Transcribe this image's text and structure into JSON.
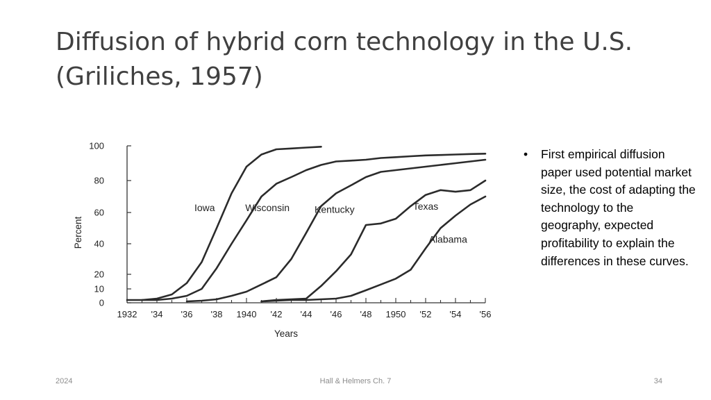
{
  "slide": {
    "title_line1": "Diffusion of hybrid corn technology in the U.S.",
    "title_line2": "(Griliches, 1957)",
    "bullet_marker": "•",
    "bullet_text": "First empirical diffusion paper used potential market size, the cost of adapting the technology to the geography, expected profitability to explain the differences in these curves.",
    "footer_date": "2024",
    "footer_source": "Hall & Helmers Ch. 7",
    "page_number": "34"
  },
  "colors": {
    "curve": "#2b2b2b",
    "axis": "#333333",
    "text": "#404040"
  },
  "chart_data": {
    "type": "line",
    "title": "",
    "xlabel": "Years",
    "ylabel": "Percent",
    "xlim": [
      1932,
      1956
    ],
    "ylim": [
      0,
      100
    ],
    "x_ticks": [
      1932,
      1934,
      1936,
      1938,
      1940,
      1942,
      1944,
      1946,
      1948,
      1950,
      1952,
      1954,
      1956
    ],
    "x_tick_labels": [
      "1932",
      "'34",
      "'36",
      "'38",
      "1940",
      "'42",
      "'44",
      "'46",
      "'48",
      "1950",
      "'52",
      "'54",
      "'56"
    ],
    "y_ticks": [
      0,
      10,
      20,
      40,
      60,
      80,
      100
    ],
    "y_tick_labels": [
      "0",
      "10",
      "20",
      "40",
      "60",
      "80",
      "100"
    ],
    "grid": false,
    "legend": "none",
    "series": [
      {
        "name": "Iowa",
        "label_at": [
          1937.2,
          63
        ],
        "x": [
          1932,
          1933,
          1934,
          1935,
          1936,
          1937,
          1938,
          1939,
          1940,
          1941,
          1942,
          1943,
          1944,
          1945
        ],
        "y": [
          2,
          2,
          3,
          6,
          14,
          28,
          50,
          72,
          88,
          95,
          98,
          98.5,
          99,
          99.5
        ]
      },
      {
        "name": "Wisconsin",
        "label_at": [
          1941.4,
          63
        ],
        "x": [
          1933,
          1934,
          1935,
          1936,
          1937,
          1938,
          1939,
          1940,
          1941,
          1942,
          1943,
          1944,
          1945,
          1946,
          1947,
          1948,
          1949,
          1950,
          1951,
          1952,
          1953,
          1954,
          1955,
          1956
        ],
        "y": [
          2,
          2,
          3,
          5,
          10,
          24,
          40,
          55,
          70,
          78,
          82,
          86,
          89,
          91,
          91.5,
          92,
          93,
          93.5,
          94,
          94.5,
          94.7,
          95,
          95.3,
          95.5
        ]
      },
      {
        "name": "Kentucky",
        "label_at": [
          1945.9,
          62
        ],
        "x": [
          1936,
          1937,
          1938,
          1939,
          1940,
          1941,
          1942,
          1943,
          1944,
          1945,
          1946,
          1947,
          1948,
          1949,
          1950,
          1951,
          1952,
          1953,
          1954,
          1955,
          1956
        ],
        "y": [
          1,
          1.5,
          2.5,
          5,
          8,
          13,
          18,
          30,
          47,
          64,
          72,
          77,
          82,
          85,
          86,
          87,
          88,
          89,
          90,
          91,
          92
        ]
      },
      {
        "name": "Texas",
        "label_at": [
          1952,
          64
        ],
        "x": [
          1941,
          1942,
          1943,
          1944,
          1945,
          1946,
          1947,
          1948,
          1949,
          1950,
          1951,
          1952,
          1953,
          1954,
          1955,
          1956
        ],
        "y": [
          1,
          2,
          2.5,
          3,
          12,
          22,
          33,
          52,
          53,
          56,
          64,
          71,
          74,
          73,
          74,
          80
        ]
      },
      {
        "name": "Alabama",
        "label_at": [
          1953.5,
          43
        ],
        "x": [
          1941,
          1942,
          1943,
          1944,
          1945,
          1946,
          1947,
          1948,
          1949,
          1950,
          1951,
          1952,
          1953,
          1954,
          1955,
          1956
        ],
        "y": [
          1,
          1.5,
          2,
          2,
          2.5,
          3,
          5,
          9,
          13,
          17,
          23,
          37,
          50,
          58,
          65,
          70
        ]
      }
    ]
  }
}
